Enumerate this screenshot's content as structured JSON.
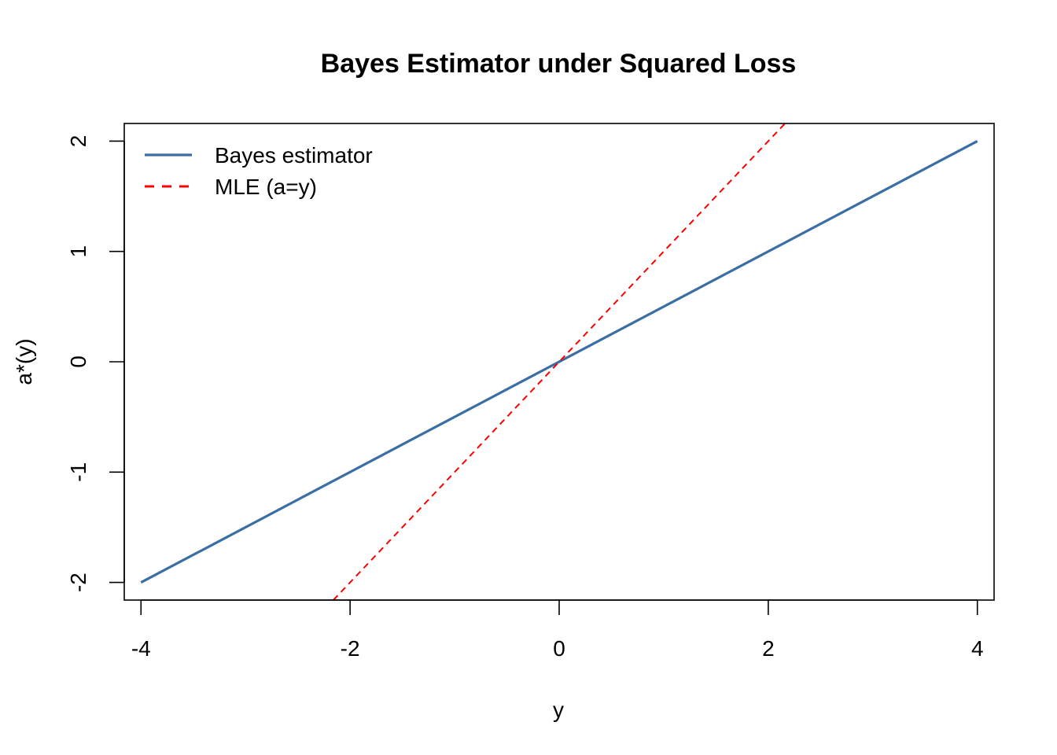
{
  "chart_data": {
    "type": "line",
    "title": "Bayes Estimator under Squared Loss",
    "xlabel": "y",
    "ylabel": "a*(y)",
    "xlim": [
      -4.16,
      4.16
    ],
    "ylim": [
      -2.16,
      2.16
    ],
    "x_ticks": [
      -4,
      -2,
      0,
      2,
      4
    ],
    "y_ticks": [
      -2,
      -1,
      0,
      1,
      2
    ],
    "grid": false,
    "legend_position": "top-left",
    "series": [
      {
        "name": "Bayes estimator",
        "x": [
          -4,
          4
        ],
        "y": [
          -2,
          2
        ],
        "color": "#3A6EA5",
        "style": "solid"
      },
      {
        "name": "MLE (a=y)",
        "x": [
          -2.16,
          2.16
        ],
        "y": [
          -2.16,
          2.16
        ],
        "color": "#FF0000",
        "style": "dashed"
      }
    ]
  }
}
